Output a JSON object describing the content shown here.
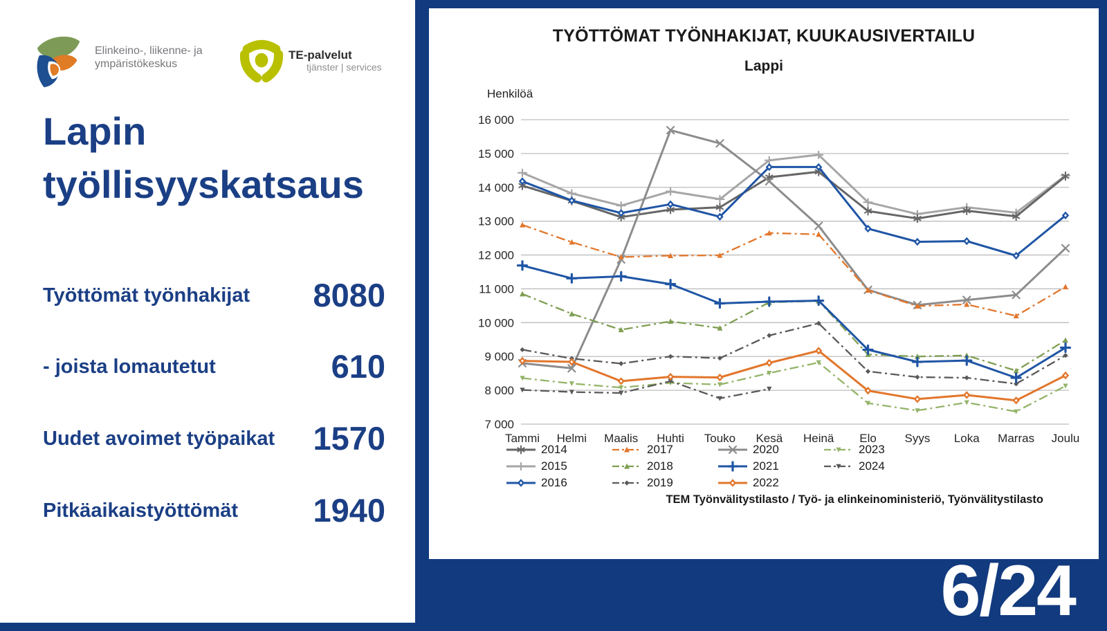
{
  "left_panel": {
    "ely_logo_text_line1": "Elinkeino-, liikenne- ja",
    "ely_logo_text_line2": "ympäristökeskus",
    "te_logo_name": "TE-palvelut",
    "te_logo_sub": "tjänster | services",
    "title": "Lapin työllisyyskatsaus",
    "stats": {
      "items": [
        {
          "label": "Työttömät työnhakijat",
          "value": "8080"
        },
        {
          "label": "- joista lomautetut",
          "value": "610"
        },
        {
          "label": "Uudet avoimet työpaikat",
          "value": "1570"
        },
        {
          "label": "Pitkäaikaistyöttömät",
          "value": "1940"
        }
      ]
    }
  },
  "page_number": "6/24",
  "colors": {
    "background_navy": "#123a7e",
    "text_navy": "#1b3f85",
    "ely_green": "#7d9b57",
    "ely_orange": "#e07b26",
    "ely_blue": "#1d4f91",
    "te_green": "#b9c000",
    "grid_gray": "#bdbdbd"
  },
  "chart_data": {
    "type": "line",
    "title": "TYÖTTÖMAT TYÖNHAKIJAT, KUUKAUSIVERTAILU",
    "subtitle": "Lappi",
    "ylabel": "Henkilöä",
    "source": "TEM Työnvälitystilasto / Työ- ja elinkeinoministeriö, Työnvälitystilasto",
    "ylim": [
      7000,
      16000
    ],
    "y_tick_step": 1000,
    "grid": true,
    "legend_position": "bottom",
    "categories": [
      "Tammi",
      "Helmi",
      "Maalis",
      "Huhti",
      "Touko",
      "Kesä",
      "Heinä",
      "Elo",
      "Syys",
      "Loka",
      "Marras",
      "Joulu"
    ],
    "series": [
      {
        "name": "2014",
        "color": "#666666",
        "dash": "solid",
        "marker": "star",
        "values": [
          14050,
          13600,
          13120,
          13340,
          13410,
          14300,
          14460,
          13300,
          13080,
          13310,
          13140,
          14330
        ]
      },
      {
        "name": "2015",
        "color": "#a6a6a6",
        "dash": "solid",
        "marker": "plus",
        "values": [
          14430,
          13820,
          13460,
          13880,
          13650,
          14800,
          14960,
          13560,
          13210,
          13410,
          13250,
          14350
        ]
      },
      {
        "name": "2016",
        "color": "#1f55a5",
        "dash": "solid",
        "marker": "diamond",
        "values": [
          14180,
          13610,
          13240,
          13500,
          13130,
          14600,
          14600,
          12780,
          12390,
          12410,
          11980,
          13170
        ]
      },
      {
        "name": "2017",
        "color": "#e2762b",
        "dash": "dashdot",
        "marker": "triangle",
        "values": [
          12890,
          12380,
          11940,
          11980,
          11990,
          12650,
          12610,
          10960,
          10490,
          10540,
          10200,
          11060
        ]
      },
      {
        "name": "2018",
        "color": "#7f9e52",
        "dash": "dashdot",
        "marker": "triangle",
        "values": [
          10850,
          10260,
          9790,
          10040,
          9840,
          10600,
          10640,
          9060,
          9000,
          9030,
          8580,
          9480
        ]
      },
      {
        "name": "2019",
        "color": "#595959",
        "dash": "dashdot",
        "marker": "dot-diamond",
        "values": [
          9200,
          8940,
          8790,
          9000,
          8950,
          9620,
          9980,
          8560,
          8390,
          8370,
          8190,
          9030
        ]
      },
      {
        "name": "2020",
        "color": "#8c8c8c",
        "dash": "solid",
        "marker": "x",
        "values": [
          8800,
          8650,
          11870,
          15690,
          15300,
          14180,
          12860,
          10970,
          10520,
          10670,
          10820,
          12200
        ]
      },
      {
        "name": "2021",
        "color": "#1f55a5",
        "dash": "solid",
        "marker": "plus-bold",
        "values": [
          11690,
          11310,
          11370,
          11140,
          10570,
          10620,
          10650,
          9200,
          8840,
          8880,
          8370,
          9260
        ]
      },
      {
        "name": "2022",
        "color": "#e2762b",
        "dash": "solid",
        "marker": "diamond",
        "values": [
          8870,
          8840,
          8270,
          8400,
          8380,
          8810,
          9170,
          7990,
          7740,
          7860,
          7700,
          8440
        ]
      },
      {
        "name": "2023",
        "color": "#94b469",
        "dash": "dashdot",
        "marker": "tri-down",
        "values": [
          8360,
          8200,
          8080,
          8220,
          8170,
          8510,
          8820,
          7620,
          7400,
          7640,
          7370,
          8130
        ]
      },
      {
        "name": "2024",
        "color": "#595959",
        "dash": "dashdot",
        "marker": "tri-down",
        "values": [
          8010,
          7950,
          7920,
          8270,
          7760,
          8040,
          null,
          null,
          null,
          null,
          null,
          null
        ]
      }
    ]
  }
}
